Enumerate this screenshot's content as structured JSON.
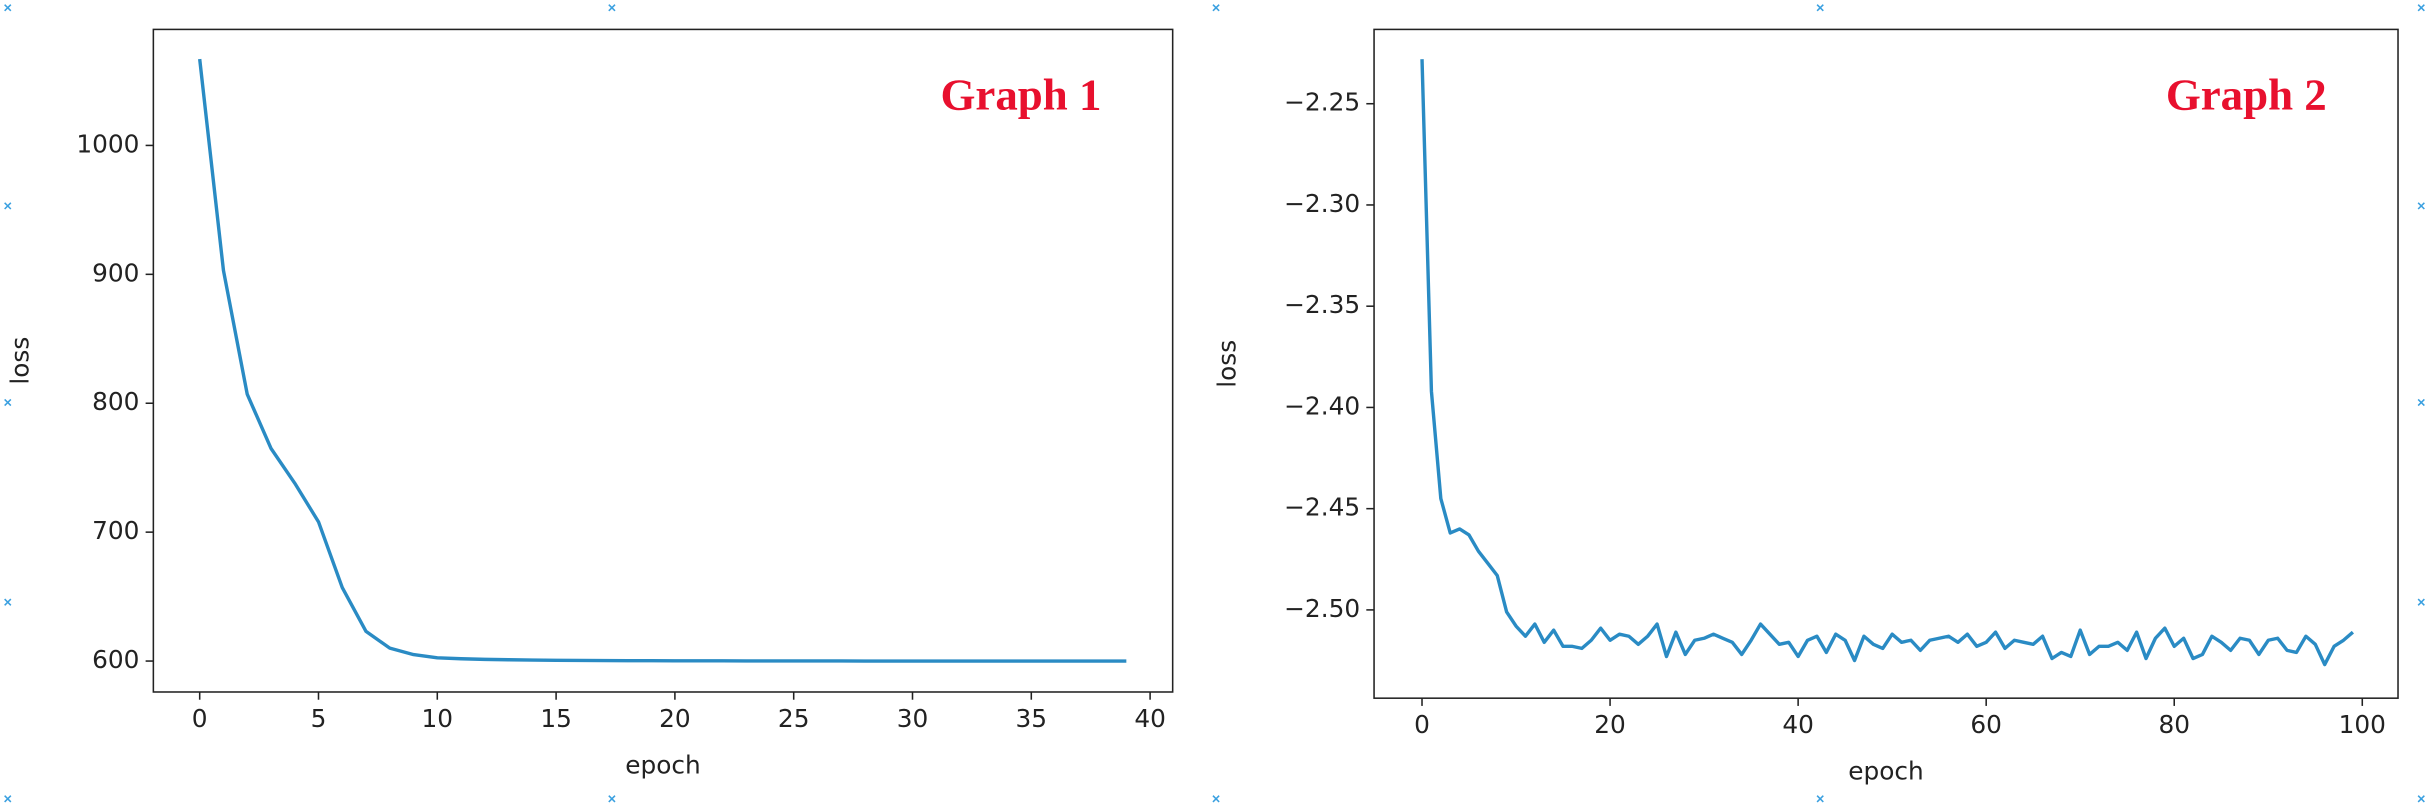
{
  "chart_data": [
    {
      "type": "line",
      "title": "Graph 1",
      "xlabel": "epoch",
      "ylabel": "loss",
      "color": "#2a8bc4",
      "x": [
        0,
        1,
        2,
        3,
        4,
        5,
        6,
        7,
        8,
        9,
        10,
        11,
        12,
        13,
        14,
        15,
        16,
        17,
        18,
        19,
        20,
        21,
        22,
        23,
        24,
        25,
        26,
        27,
        28,
        29,
        30,
        31,
        32,
        33,
        34,
        35,
        36,
        37,
        38,
        39
      ],
      "values": [
        1067,
        903,
        807,
        765,
        738,
        708,
        657,
        623,
        610,
        605,
        602.5,
        601.8,
        601.3,
        601,
        600.8,
        600.6,
        600.5,
        600.4,
        600.3,
        600.3,
        600.2,
        600.2,
        600.2,
        600.1,
        600.1,
        600.1,
        600.1,
        600.1,
        600,
        600,
        600,
        600,
        600,
        600,
        600,
        600,
        600,
        600,
        600,
        600
      ],
      "xlim": [
        -1.95,
        40.95
      ],
      "ylim": [
        576,
        1090
      ],
      "xticks": [
        0,
        5,
        10,
        15,
        20,
        25,
        30,
        35,
        40
      ],
      "yticks": [
        600,
        700,
        800,
        900,
        1000
      ]
    },
    {
      "type": "line",
      "title": "Graph 2",
      "xlabel": "epoch",
      "ylabel": "loss",
      "color": "#2a8bc4",
      "x": [
        0,
        1,
        2,
        3,
        4,
        5,
        6,
        7,
        8,
        9,
        10,
        11,
        12,
        13,
        14,
        15,
        16,
        17,
        18,
        19,
        20,
        21,
        22,
        23,
        24,
        25,
        26,
        27,
        28,
        29,
        30,
        31,
        32,
        33,
        34,
        35,
        36,
        37,
        38,
        39,
        40,
        41,
        42,
        43,
        44,
        45,
        46,
        47,
        48,
        49,
        50,
        51,
        52,
        53,
        54,
        55,
        56,
        57,
        58,
        59,
        60,
        61,
        62,
        63,
        64,
        65,
        66,
        67,
        68,
        69,
        70,
        71,
        72,
        73,
        74,
        75,
        76,
        77,
        78,
        79,
        80,
        81,
        82,
        83,
        84,
        85,
        86,
        87,
        88,
        89,
        90,
        91,
        92,
        93,
        94,
        95,
        96,
        97,
        98,
        99
      ],
      "values": [
        -2.228,
        -2.392,
        -2.445,
        -2.462,
        -2.46,
        -2.463,
        -2.471,
        -2.477,
        -2.483,
        -2.501,
        -2.508,
        -2.513,
        -2.507,
        -2.516,
        -2.51,
        -2.518,
        -2.518,
        -2.519,
        -2.515,
        -2.509,
        -2.515,
        -2.512,
        -2.513,
        -2.517,
        -2.513,
        -2.507,
        -2.523,
        -2.511,
        -2.522,
        -2.515,
        -2.514,
        -2.512,
        -2.514,
        -2.516,
        -2.522,
        -2.515,
        -2.507,
        -2.512,
        -2.517,
        -2.516,
        -2.523,
        -2.515,
        -2.513,
        -2.521,
        -2.512,
        -2.515,
        -2.525,
        -2.513,
        -2.517,
        -2.519,
        -2.512,
        -2.516,
        -2.515,
        -2.52,
        -2.515,
        -2.514,
        -2.513,
        -2.516,
        -2.512,
        -2.518,
        -2.516,
        -2.511,
        -2.519,
        -2.515,
        -2.516,
        -2.517,
        -2.513,
        -2.524,
        -2.521,
        -2.523,
        -2.51,
        -2.522,
        -2.518,
        -2.518,
        -2.516,
        -2.52,
        -2.511,
        -2.524,
        -2.514,
        -2.509,
        -2.518,
        -2.514,
        -2.524,
        -2.522,
        -2.513,
        -2.516,
        -2.52,
        -2.514,
        -2.515,
        -2.522,
        -2.515,
        -2.514,
        -2.52,
        -2.521,
        -2.513,
        -2.517,
        -2.527,
        -2.518,
        -2.515,
        -2.511
      ],
      "xlim": [
        -5.1,
        103.8
      ],
      "ylim": [
        -2.5436,
        -2.2133
      ],
      "xticks": [
        0,
        20,
        40,
        60,
        80,
        100
      ],
      "yticks": [
        {
          "value": -2.5,
          "label": "−2.50"
        },
        {
          "value": -2.45,
          "label": "−2.45"
        },
        {
          "value": -2.4,
          "label": "−2.40"
        },
        {
          "value": -2.35,
          "label": "−2.35"
        },
        {
          "value": -2.3,
          "label": "−2.30"
        },
        {
          "value": -2.25,
          "label": "−2.25"
        }
      ]
    }
  ]
}
